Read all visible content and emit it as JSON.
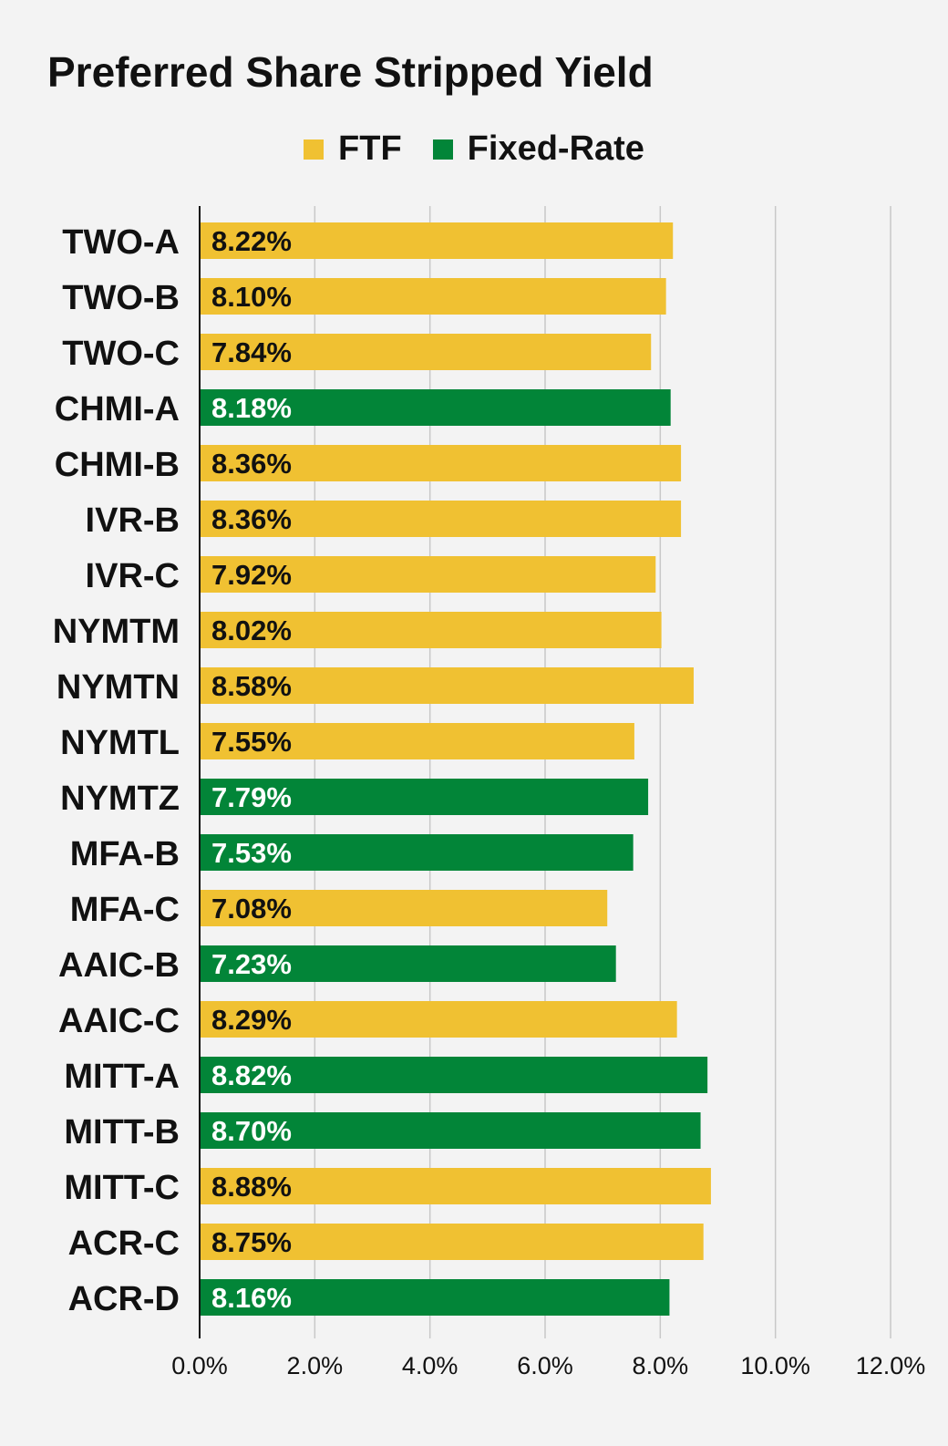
{
  "chart_data": {
    "type": "bar",
    "orientation": "horizontal",
    "title": "Preferred Share Stripped Yield",
    "legend": [
      {
        "name": "FTF",
        "color": "#f0c132"
      },
      {
        "name": "Fixed-Rate",
        "color": "#028538"
      }
    ],
    "categories": [
      "TWO-A",
      "TWO-B",
      "TWO-C",
      "CHMI-A",
      "CHMI-B",
      "IVR-B",
      "IVR-C",
      "NYMTM",
      "NYMTN",
      "NYMTL",
      "NYMTZ",
      "MFA-B",
      "MFA-C",
      "AAIC-B",
      "AAIC-C",
      "MITT-A",
      "MITT-B",
      "MITT-C",
      "ACR-C",
      "ACR-D"
    ],
    "values": [
      8.22,
      8.1,
      7.84,
      8.18,
      8.36,
      8.36,
      7.92,
      8.02,
      8.58,
      7.55,
      7.79,
      7.53,
      7.08,
      7.23,
      8.29,
      8.82,
      8.7,
      8.88,
      8.75,
      8.16
    ],
    "series_of_bar": [
      "FTF",
      "FTF",
      "FTF",
      "Fixed-Rate",
      "FTF",
      "FTF",
      "FTF",
      "FTF",
      "FTF",
      "FTF",
      "Fixed-Rate",
      "Fixed-Rate",
      "FTF",
      "Fixed-Rate",
      "FTF",
      "Fixed-Rate",
      "Fixed-Rate",
      "FTF",
      "FTF",
      "Fixed-Rate"
    ],
    "value_labels": [
      "8.22%",
      "8.10%",
      "7.84%",
      "8.18%",
      "8.36%",
      "8.36%",
      "7.92%",
      "8.02%",
      "8.58%",
      "7.55%",
      "7.79%",
      "7.53%",
      "7.08%",
      "7.23%",
      "8.29%",
      "8.82%",
      "8.70%",
      "8.88%",
      "8.75%",
      "8.16%"
    ],
    "xlim": [
      0,
      12
    ],
    "xticks": [
      "0.0%",
      "2.0%",
      "4.0%",
      "6.0%",
      "8.0%",
      "10.0%",
      "12.0%"
    ],
    "grid": true,
    "legend_placement": "top-center"
  }
}
